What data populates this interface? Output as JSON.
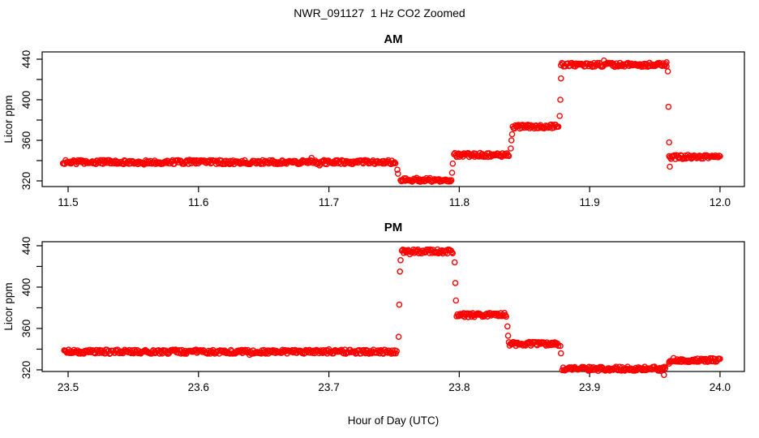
{
  "figure": {
    "title": "NWR_091127  1 Hz CO2 Zoomed",
    "xlabel": "Hour of Day (UTC)"
  },
  "chart_data": [
    {
      "panel": "AM",
      "title": "AM",
      "type": "scatter",
      "marker": "open-circle",
      "color": "#FF0000",
      "ylabel": "Licor ppm",
      "xlabel": "Hour of Day (UTC)",
      "xlim": [
        11.4801,
        12.0187
      ],
      "ylim": [
        314.4,
        447.2
      ],
      "x_ticks": [
        11.5,
        11.6,
        11.7,
        11.8,
        11.9,
        12.0
      ],
      "x_tick_labels": [
        "11.5",
        "11.6",
        "11.7",
        "11.8",
        "11.9",
        "12.0"
      ],
      "y_ticks_all": [
        320,
        340,
        360,
        380,
        400,
        420,
        440
      ],
      "y_ticks_labeled": [
        320,
        360,
        400,
        440
      ],
      "y_tick_labels": [
        "320",
        "360",
        "400",
        "440"
      ],
      "segments": [
        {
          "x0": 11.496,
          "x1": 11.751,
          "value": 338.5
        },
        {
          "x0": 11.755,
          "x1": 11.794,
          "value": 321.0
        },
        {
          "x0": 11.796,
          "x1": 11.838,
          "value": 345.5
        },
        {
          "x0": 11.841,
          "x1": 11.876,
          "value": 373.5
        },
        {
          "x0": 11.878,
          "x1": 11.959,
          "value": 434.5
        },
        {
          "x0": 11.961,
          "x1": 12.0,
          "value": 343.5
        }
      ],
      "transitions": [
        {
          "x": 11.7525,
          "values": [
            331,
            327
          ]
        },
        {
          "x": 11.7945,
          "values": [
            328,
            337
          ]
        },
        {
          "x": 11.8395,
          "values": [
            352,
            360,
            366
          ]
        },
        {
          "x": 11.877,
          "values": [
            384,
            400,
            421
          ]
        },
        {
          "x": 11.959,
          "values": [
            437
          ]
        },
        {
          "x": 11.96,
          "values": [
            428,
            393,
            358
          ]
        },
        {
          "x": 11.9615,
          "values": [
            334
          ]
        }
      ]
    },
    {
      "panel": "PM",
      "title": "PM",
      "type": "scatter",
      "marker": "open-circle",
      "color": "#FF0000",
      "ylabel": "Licor ppm",
      "xlabel": "Hour of Day (UTC)",
      "xlim": [
        23.4801,
        24.0187
      ],
      "ylim": [
        318.4,
        443.9
      ],
      "x_ticks": [
        23.5,
        23.6,
        23.7,
        23.8,
        23.9,
        24.0
      ],
      "x_tick_labels": [
        "23.5",
        "23.6",
        "23.7",
        "23.8",
        "23.9",
        "24.0"
      ],
      "y_ticks_all": [
        320,
        340,
        360,
        380,
        400,
        420,
        440
      ],
      "y_ticks_labeled": [
        320,
        360,
        400,
        440
      ],
      "y_tick_labels": [
        "320",
        "360",
        "400",
        "440"
      ],
      "segments": [
        {
          "x0": 23.497,
          "x1": 23.752,
          "value": 337.5
        },
        {
          "x0": 23.756,
          "x1": 23.795,
          "value": 434.5
        },
        {
          "x0": 23.798,
          "x1": 23.836,
          "value": 373.0
        },
        {
          "x0": 23.838,
          "x1": 23.876,
          "value": 345.0
        },
        {
          "x0": 23.879,
          "x1": 23.958,
          "value": 321.0
        },
        {
          "x0": 23.961,
          "x1": 24.0,
          "value": 329.5
        }
      ],
      "transitions": [
        {
          "x": 23.7535,
          "values": [
            352,
            383,
            415,
            426
          ]
        },
        {
          "x": 23.7965,
          "values": [
            424,
            404,
            387
          ]
        },
        {
          "x": 23.837,
          "values": [
            362,
            353
          ]
        },
        {
          "x": 23.8775,
          "values": [
            343,
            336
          ]
        },
        {
          "x": 23.957,
          "values": [
            315
          ]
        },
        {
          "x": 23.961,
          "values": [
            326
          ]
        }
      ]
    }
  ]
}
